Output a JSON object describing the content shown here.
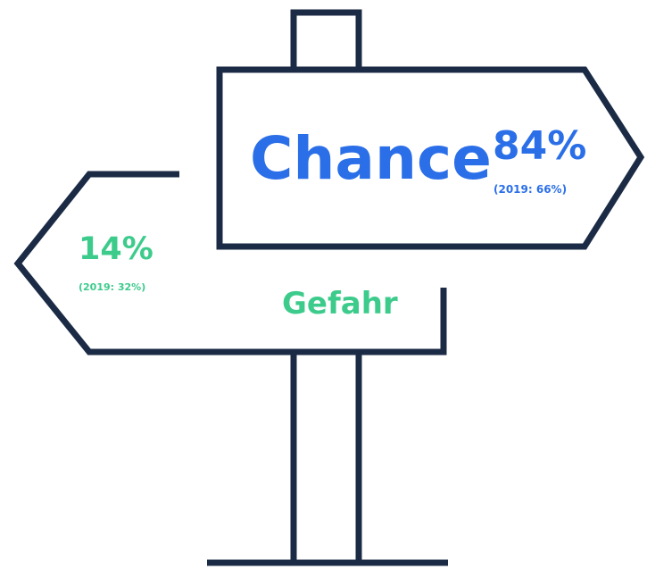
{
  "signpost": {
    "chance": {
      "label": "Chance",
      "value": "84%",
      "previous": "(2019: 66%)"
    },
    "gefahr": {
      "label": "Gefahr",
      "value": "14%",
      "previous": "(2019: 32%)"
    }
  }
}
